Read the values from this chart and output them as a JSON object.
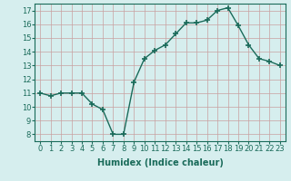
{
  "x": [
    0,
    1,
    2,
    3,
    4,
    5,
    6,
    7,
    8,
    9,
    10,
    11,
    12,
    13,
    14,
    15,
    16,
    17,
    18,
    19,
    20,
    21,
    22,
    23
  ],
  "y": [
    11,
    10.8,
    11,
    11,
    11,
    10.2,
    9.8,
    8.0,
    8.0,
    11.8,
    13.5,
    14.1,
    14.5,
    15.3,
    16.1,
    16.1,
    16.3,
    17.0,
    17.2,
    15.9,
    14.5,
    13.5,
    13.3,
    13.0
  ],
  "line_color": "#1a6b5a",
  "marker": "+",
  "marker_size": 4,
  "marker_lw": 1.2,
  "line_width": 1.0,
  "bg_color": "#d6eeee",
  "grid_color": "#c8a0a0",
  "xlabel": "Humidex (Indice chaleur)",
  "xlim": [
    -0.5,
    23.5
  ],
  "ylim": [
    7.5,
    17.5
  ],
  "yticks": [
    8,
    9,
    10,
    11,
    12,
    13,
    14,
    15,
    16,
    17
  ],
  "xticks": [
    0,
    1,
    2,
    3,
    4,
    5,
    6,
    7,
    8,
    9,
    10,
    11,
    12,
    13,
    14,
    15,
    16,
    17,
    18,
    19,
    20,
    21,
    22,
    23
  ],
  "xtick_labels": [
    "0",
    "1",
    "2",
    "3",
    "4",
    "5",
    "6",
    "7",
    "8",
    "9",
    "10",
    "11",
    "12",
    "13",
    "14",
    "15",
    "16",
    "17",
    "18",
    "19",
    "20",
    "21",
    "22",
    "23"
  ],
  "ytick_labels": [
    "8",
    "9",
    "10",
    "11",
    "12",
    "13",
    "14",
    "15",
    "16",
    "17"
  ],
  "font_color": "#1a6b5a",
  "label_fontsize": 7,
  "tick_fontsize": 6
}
